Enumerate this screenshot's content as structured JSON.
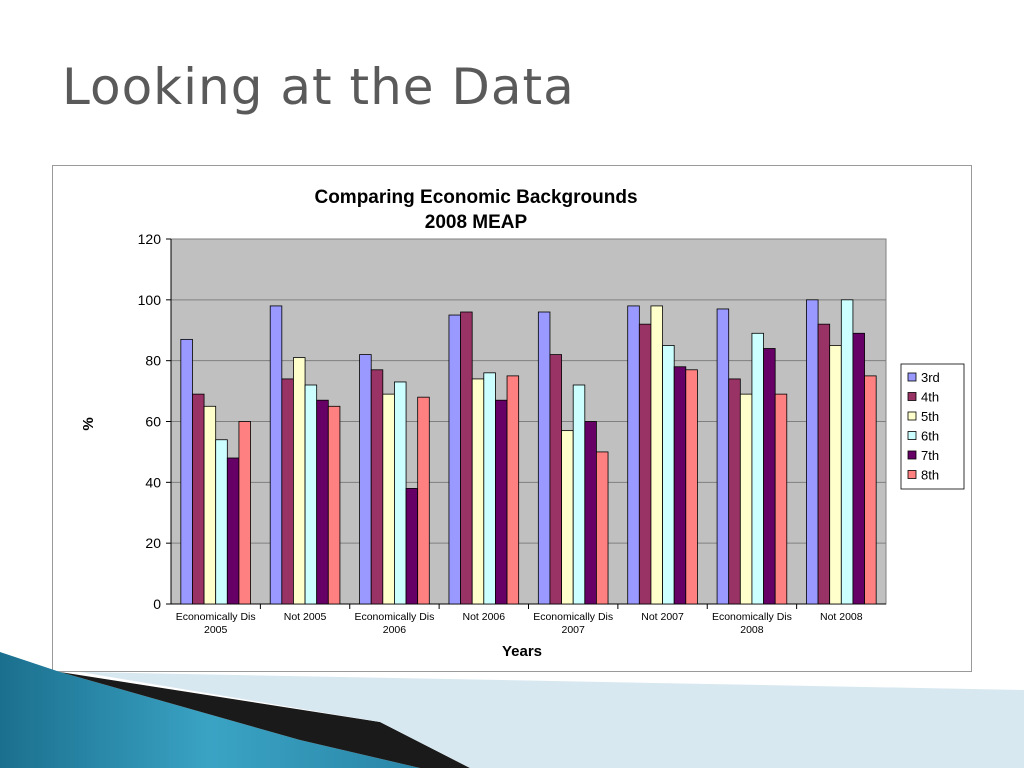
{
  "slide": {
    "title": "Looking at the Data"
  },
  "colors": {
    "plot_background": "#c0c0c0",
    "gridline": "#7f7f7f",
    "title_text": "#5a5a5a"
  },
  "chart_data": {
    "type": "bar",
    "title": "Comparing Economic Backgrounds",
    "subtitle": "2008 MEAP",
    "xlabel": "Years",
    "ylabel": "%",
    "ylim": [
      0,
      120
    ],
    "yticks": [
      0,
      20,
      40,
      60,
      80,
      100,
      120
    ],
    "grid": true,
    "legend_position": "right",
    "categories": [
      [
        "Economically Dis",
        "2005"
      ],
      [
        "Not 2005"
      ],
      [
        "Economically Dis",
        "2006"
      ],
      [
        "Not 2006"
      ],
      [
        "Economically Dis",
        "2007"
      ],
      [
        "Not 2007"
      ],
      [
        "Economically Dis",
        "2008"
      ],
      [
        "Not 2008"
      ]
    ],
    "series": [
      {
        "name": "3rd",
        "color": "#9999ff",
        "values": [
          87,
          98,
          82,
          95,
          96,
          98,
          97,
          100
        ]
      },
      {
        "name": "4th",
        "color": "#993366",
        "values": [
          69,
          74,
          77,
          96,
          82,
          92,
          74,
          92
        ]
      },
      {
        "name": "5th",
        "color": "#ffffcc",
        "values": [
          65,
          81,
          69,
          74,
          57,
          98,
          69,
          85
        ]
      },
      {
        "name": "6th",
        "color": "#ccffff",
        "values": [
          54,
          72,
          73,
          76,
          72,
          85,
          89,
          100
        ]
      },
      {
        "name": "7th",
        "color": "#660066",
        "values": [
          48,
          67,
          38,
          67,
          60,
          78,
          84,
          89
        ]
      },
      {
        "name": "8th",
        "color": "#ff8080",
        "values": [
          60,
          65,
          68,
          75,
          50,
          77,
          69,
          75
        ]
      }
    ]
  }
}
